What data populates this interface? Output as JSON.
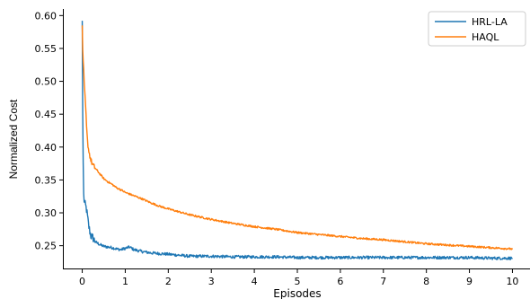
{
  "chart_data": {
    "type": "line",
    "title": "",
    "xlabel": "Episodes",
    "ylabel": "Normalized Cost",
    "xlim": [
      -0.45,
      10.45
    ],
    "ylim": [
      0.214,
      0.61
    ],
    "xticks": [
      0,
      1,
      2,
      3,
      4,
      5,
      6,
      7,
      8,
      9,
      10
    ],
    "yticks": [
      0.25,
      0.3,
      0.35,
      0.4,
      0.45,
      0.5,
      0.55,
      0.6
    ],
    "ytick_labels": [
      "0.25",
      "0.30",
      "0.35",
      "0.40",
      "0.45",
      "0.50",
      "0.55",
      "0.60"
    ],
    "grid": false,
    "legend": "top-right",
    "series": [
      {
        "name": "HRL-LA",
        "color": "#1f77b4",
        "x": [
          0,
          0.01,
          0.02,
          0.03,
          0.05,
          0.08,
          0.1,
          0.15,
          0.2,
          0.25,
          0.3,
          0.4,
          0.5,
          0.6,
          0.7,
          0.8,
          0.9,
          1.0,
          1.1,
          1.2,
          1.4,
          1.6,
          1.8,
          2.0,
          2.5,
          3.0,
          3.5,
          4.0,
          4.5,
          5.0,
          5.5,
          6.0,
          6.5,
          7.0,
          7.5,
          8.0,
          8.5,
          9.0,
          9.5,
          10.0
        ],
        "y": [
          0.592,
          0.46,
          0.39,
          0.33,
          0.315,
          0.31,
          0.305,
          0.28,
          0.265,
          0.262,
          0.256,
          0.252,
          0.249,
          0.248,
          0.247,
          0.245,
          0.244,
          0.246,
          0.248,
          0.244,
          0.241,
          0.239,
          0.238,
          0.237,
          0.234,
          0.234,
          0.233,
          0.233,
          0.233,
          0.232,
          0.232,
          0.232,
          0.232,
          0.232,
          0.232,
          0.232,
          0.232,
          0.232,
          0.231,
          0.231
        ]
      },
      {
        "name": "HAQL",
        "color": "#ff7f0e",
        "x": [
          0,
          0.01,
          0.03,
          0.05,
          0.08,
          0.1,
          0.12,
          0.15,
          0.2,
          0.25,
          0.3,
          0.4,
          0.5,
          0.6,
          0.7,
          0.8,
          0.9,
          1.0,
          1.2,
          1.4,
          1.6,
          1.8,
          2.0,
          2.5,
          3.0,
          3.5,
          4.0,
          4.5,
          5.0,
          5.5,
          6.0,
          6.5,
          7.0,
          7.5,
          8.0,
          8.5,
          9.0,
          9.5,
          10.0
        ],
        "y": [
          0.585,
          0.55,
          0.52,
          0.49,
          0.46,
          0.43,
          0.41,
          0.395,
          0.38,
          0.372,
          0.368,
          0.36,
          0.352,
          0.347,
          0.343,
          0.338,
          0.335,
          0.331,
          0.326,
          0.321,
          0.315,
          0.31,
          0.306,
          0.297,
          0.29,
          0.284,
          0.279,
          0.275,
          0.27,
          0.267,
          0.264,
          0.261,
          0.259,
          0.256,
          0.253,
          0.251,
          0.249,
          0.247,
          0.245
        ]
      }
    ]
  }
}
